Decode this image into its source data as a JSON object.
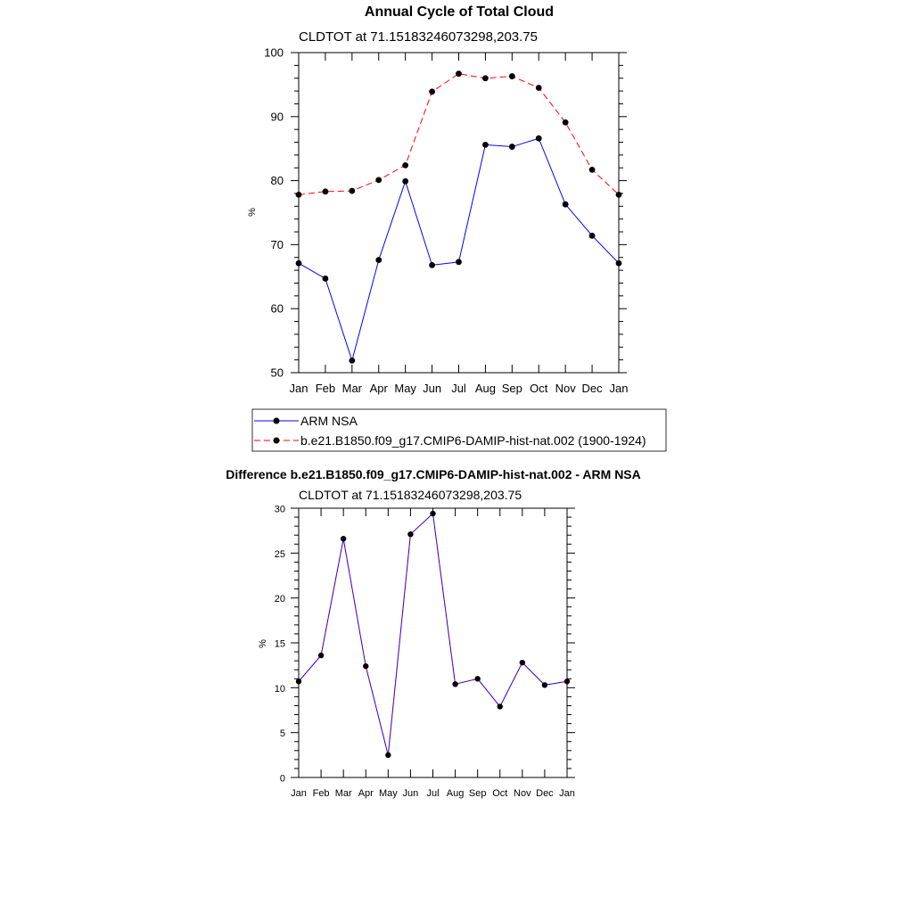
{
  "colors": {
    "obs": "#0000ff",
    "model": "#ff0000",
    "marker": "#000000",
    "frame": "#000000"
  },
  "chart_data": [
    {
      "type": "line",
      "title": "Annual Cycle of Total Cloud",
      "subtitle": "CLDTOT at 71.15183246073298,203.75",
      "ylabel": "%",
      "xlabel": "",
      "ylim": [
        50,
        100
      ],
      "yticks": [
        50,
        60,
        70,
        80,
        90,
        100
      ],
      "categories": [
        "Jan",
        "Feb",
        "Mar",
        "Apr",
        "May",
        "Jun",
        "Jul",
        "Aug",
        "Sep",
        "Oct",
        "Nov",
        "Dec",
        "Jan"
      ],
      "series": [
        {
          "name": "ARM NSA",
          "style": "solid",
          "color_key": "obs",
          "values": [
            67.1,
            64.7,
            51.9,
            67.6,
            79.9,
            66.8,
            67.3,
            85.6,
            85.3,
            86.6,
            76.3,
            71.4,
            67.1
          ]
        },
        {
          "name": "b.e21.B1850.f09_g17.CMIP6-DAMIP-hist-nat.002 (1900-1924)",
          "style": "dashed",
          "color_key": "model",
          "values": [
            77.8,
            78.3,
            78.4,
            80.1,
            82.4,
            93.9,
            96.7,
            96.0,
            96.3,
            94.5,
            89.1,
            81.7,
            77.8
          ]
        }
      ],
      "legend": "below"
    },
    {
      "type": "line",
      "title": "Difference b.e21.B1850.f09_g17.CMIP6-DAMIP-hist-nat.002 - ARM NSA",
      "subtitle": "CLDTOT at 71.15183246073298,203.75",
      "ylabel": "%",
      "xlabel": "",
      "ylim": [
        0,
        30
      ],
      "yticks": [
        0,
        5,
        10,
        15,
        20,
        25,
        30
      ],
      "categories": [
        "Jan",
        "Feb",
        "Mar",
        "Apr",
        "May",
        "Jun",
        "Jul",
        "Aug",
        "Sep",
        "Oct",
        "Nov",
        "Dec",
        "Jan"
      ],
      "series": [
        {
          "name": "Difference",
          "style": "solid",
          "color_key": "obs",
          "values": [
            10.7,
            13.6,
            26.6,
            12.4,
            2.5,
            27.1,
            29.4,
            10.4,
            11.0,
            7.9,
            12.8,
            10.3,
            10.7
          ]
        }
      ]
    }
  ]
}
